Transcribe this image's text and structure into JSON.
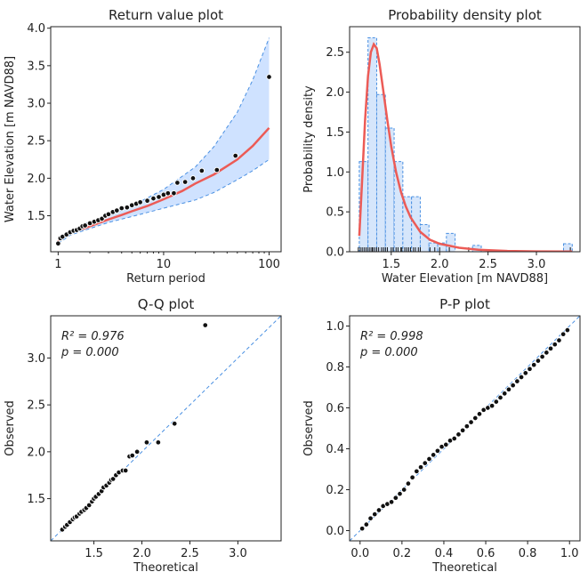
{
  "colors": {
    "fit_line": "#ec5b56",
    "ci_fill": "#cfe2ff",
    "ci_edge": "#4a90e2",
    "hist_fill": "#d6e6fb",
    "hist_edge": "#4a90e2",
    "points": "#111111",
    "identity": "#4a90e2"
  },
  "chart_data": [
    {
      "id": "return",
      "type": "line",
      "title": "Return value plot",
      "xlabel": "Return period",
      "ylabel": "Water Elevation [m NAVD88]",
      "x_scale": "log",
      "xlim": [
        0.85,
        130
      ],
      "ylim": [
        1.02,
        4.02
      ],
      "xticks": [
        1,
        10,
        100
      ],
      "xtick_labels": [
        "1",
        "10",
        "100"
      ],
      "yticks": [
        1.5,
        2.0,
        2.5,
        3.0,
        3.5,
        4.0
      ],
      "ytick_labels": [
        "1.5",
        "2.0",
        "2.5",
        "3.0",
        "3.5",
        "4.0"
      ],
      "fit": {
        "x": [
          1.0,
          1.1,
          1.3,
          1.6,
          2,
          3,
          4,
          5,
          7,
          10,
          15,
          20,
          30,
          50,
          70,
          100
        ],
        "y": [
          1.16,
          1.22,
          1.27,
          1.31,
          1.36,
          1.45,
          1.51,
          1.56,
          1.63,
          1.72,
          1.83,
          1.93,
          2.05,
          2.25,
          2.43,
          2.67
        ]
      },
      "ci_upper": {
        "x": [
          1.0,
          1.3,
          2,
          3,
          5,
          10,
          20,
          30,
          50,
          70,
          100
        ],
        "y": [
          1.19,
          1.3,
          1.42,
          1.5,
          1.63,
          1.85,
          2.15,
          2.42,
          2.88,
          3.31,
          3.87
        ]
      },
      "ci_lower": {
        "x": [
          1.0,
          1.3,
          2,
          3,
          5,
          10,
          20,
          30,
          50,
          70,
          100
        ],
        "y": [
          1.13,
          1.24,
          1.33,
          1.41,
          1.49,
          1.6,
          1.71,
          1.81,
          1.98,
          2.1,
          2.25
        ]
      },
      "points": {
        "x": [
          1.0,
          1.05,
          1.1,
          1.2,
          1.3,
          1.4,
          1.5,
          1.6,
          1.7,
          1.8,
          2.0,
          2.2,
          2.4,
          2.6,
          2.8,
          3.0,
          3.3,
          3.6,
          4.0,
          4.5,
          5.0,
          5.5,
          6.0,
          7.0,
          8.0,
          9.0,
          10.0,
          11.0,
          12.5,
          13.5,
          16,
          19,
          23,
          32,
          48,
          100
        ],
        "y": [
          1.13,
          1.2,
          1.22,
          1.25,
          1.28,
          1.3,
          1.31,
          1.33,
          1.36,
          1.37,
          1.4,
          1.42,
          1.44,
          1.46,
          1.5,
          1.52,
          1.55,
          1.57,
          1.6,
          1.61,
          1.64,
          1.66,
          1.68,
          1.7,
          1.73,
          1.75,
          1.78,
          1.8,
          1.8,
          1.94,
          1.95,
          2.0,
          2.1,
          2.11,
          2.3,
          3.35
        ]
      }
    },
    {
      "id": "pdf",
      "type": "bar",
      "title": "Probability density plot",
      "xlabel": "Water Elevation [m NAVD88]",
      "ylabel": "Probability density",
      "xlim": [
        1.07,
        3.45
      ],
      "ylim": [
        0,
        2.82
      ],
      "xticks": [
        1.5,
        2.0,
        2.5,
        3.0
      ],
      "xtick_labels": [
        "1.5",
        "2.0",
        "2.5",
        "3.0"
      ],
      "yticks": [
        0.0,
        0.5,
        1.0,
        1.5,
        2.0,
        2.5
      ],
      "ytick_labels": [
        "0.0",
        "0.5",
        "1.0",
        "1.5",
        "2.0",
        "2.5"
      ],
      "bins": [
        {
          "x0": 1.17,
          "x1": 1.26,
          "value": 1.13
        },
        {
          "x0": 1.26,
          "x1": 1.35,
          "value": 2.68
        },
        {
          "x0": 1.35,
          "x1": 1.44,
          "value": 1.97
        },
        {
          "x0": 1.44,
          "x1": 1.53,
          "value": 1.55
        },
        {
          "x0": 1.53,
          "x1": 1.62,
          "value": 1.13
        },
        {
          "x0": 1.62,
          "x1": 1.71,
          "value": 0.69
        },
        {
          "x0": 1.71,
          "x1": 1.8,
          "value": 0.69
        },
        {
          "x0": 1.8,
          "x1": 1.89,
          "value": 0.34
        },
        {
          "x0": 1.89,
          "x1": 1.98,
          "value": 0.11
        },
        {
          "x0": 1.98,
          "x1": 2.07,
          "value": 0.11
        },
        {
          "x0": 2.07,
          "x1": 2.16,
          "value": 0.23
        },
        {
          "x0": 2.16,
          "x1": 2.25,
          "value": 0.0
        },
        {
          "x0": 2.25,
          "x1": 2.34,
          "value": 0.0
        },
        {
          "x0": 2.34,
          "x1": 2.43,
          "value": 0.08
        },
        {
          "x0": 3.28,
          "x1": 3.37,
          "value": 0.1
        }
      ],
      "pdf": {
        "x": [
          1.17,
          1.2,
          1.23,
          1.26,
          1.29,
          1.32,
          1.35,
          1.38,
          1.42,
          1.46,
          1.5,
          1.55,
          1.6,
          1.65,
          1.7,
          1.8,
          1.9,
          2.0,
          2.2,
          2.4,
          2.7,
          3.0,
          3.37
        ],
        "y": [
          0.2,
          0.9,
          1.65,
          2.2,
          2.5,
          2.6,
          2.55,
          2.35,
          2.0,
          1.65,
          1.32,
          1.0,
          0.75,
          0.57,
          0.43,
          0.25,
          0.15,
          0.1,
          0.05,
          0.025,
          0.01,
          0.005,
          0.002
        ]
      },
      "rug": [
        1.16,
        1.18,
        1.2,
        1.22,
        1.24,
        1.26,
        1.28,
        1.3,
        1.31,
        1.33,
        1.35,
        1.37,
        1.4,
        1.42,
        1.44,
        1.46,
        1.5,
        1.52,
        1.55,
        1.57,
        1.6,
        1.61,
        1.64,
        1.66,
        1.68,
        1.7,
        1.73,
        1.75,
        1.78,
        1.8,
        1.9,
        1.95,
        2.0,
        2.1,
        2.3,
        3.35
      ]
    },
    {
      "id": "qq",
      "type": "scatter",
      "title": "Q-Q plot",
      "xlabel": "Theoretical",
      "ylabel": "Observed",
      "xlim": [
        1.05,
        3.45
      ],
      "ylim": [
        1.05,
        3.45
      ],
      "xticks": [
        1.5,
        2.0,
        2.5,
        3.0
      ],
      "xtick_labels": [
        "1.5",
        "2.0",
        "2.5",
        "3.0"
      ],
      "yticks": [
        1.5,
        2.0,
        2.5,
        3.0
      ],
      "ytick_labels": [
        "1.5",
        "2.0",
        "2.5",
        "3.0"
      ],
      "r2_text": "R² = 0.976",
      "p_text": "p = 0.000",
      "points": {
        "x": [
          1.17,
          1.2,
          1.22,
          1.25,
          1.28,
          1.3,
          1.32,
          1.35,
          1.37,
          1.4,
          1.42,
          1.45,
          1.48,
          1.5,
          1.52,
          1.55,
          1.58,
          1.6,
          1.63,
          1.66,
          1.68,
          1.7,
          1.73,
          1.76,
          1.8,
          1.83,
          1.87,
          1.9,
          1.95,
          2.05,
          2.17,
          2.34,
          2.66
        ],
        "y": [
          1.17,
          1.2,
          1.22,
          1.25,
          1.28,
          1.3,
          1.31,
          1.34,
          1.36,
          1.38,
          1.4,
          1.43,
          1.47,
          1.5,
          1.52,
          1.55,
          1.58,
          1.62,
          1.64,
          1.67,
          1.7,
          1.71,
          1.75,
          1.78,
          1.8,
          1.8,
          1.95,
          1.96,
          2.0,
          2.1,
          2.1,
          2.3,
          3.35
        ]
      }
    },
    {
      "id": "pp",
      "type": "scatter",
      "title": "P-P plot",
      "xlabel": "Theoretical",
      "ylabel": "Observed",
      "xlim": [
        -0.05,
        1.05
      ],
      "ylim": [
        -0.05,
        1.05
      ],
      "xticks": [
        0.0,
        0.2,
        0.4,
        0.6,
        0.8,
        1.0
      ],
      "xtick_labels": [
        "0.0",
        "0.2",
        "0.4",
        "0.6",
        "0.8",
        "1.0"
      ],
      "yticks": [
        0.0,
        0.2,
        0.4,
        0.6,
        0.8,
        1.0
      ],
      "ytick_labels": [
        "0.0",
        "0.2",
        "0.4",
        "0.6",
        "0.8",
        "1.0"
      ],
      "r2_text": "R² = 0.998",
      "p_text": "p = 0.000",
      "points": {
        "x": [
          0.01,
          0.03,
          0.05,
          0.07,
          0.09,
          0.11,
          0.13,
          0.15,
          0.17,
          0.19,
          0.21,
          0.23,
          0.25,
          0.27,
          0.29,
          0.31,
          0.33,
          0.35,
          0.37,
          0.39,
          0.41,
          0.43,
          0.45,
          0.47,
          0.49,
          0.51,
          0.53,
          0.55,
          0.57,
          0.59,
          0.61,
          0.63,
          0.65,
          0.67,
          0.69,
          0.71,
          0.73,
          0.75,
          0.77,
          0.79,
          0.81,
          0.83,
          0.85,
          0.87,
          0.89,
          0.91,
          0.93,
          0.95,
          0.97,
          0.99
        ],
        "y": [
          0.01,
          0.03,
          0.06,
          0.08,
          0.1,
          0.12,
          0.13,
          0.14,
          0.16,
          0.18,
          0.2,
          0.23,
          0.26,
          0.29,
          0.31,
          0.33,
          0.35,
          0.37,
          0.39,
          0.41,
          0.42,
          0.44,
          0.45,
          0.47,
          0.49,
          0.51,
          0.53,
          0.55,
          0.57,
          0.59,
          0.6,
          0.61,
          0.63,
          0.65,
          0.67,
          0.69,
          0.71,
          0.73,
          0.75,
          0.77,
          0.79,
          0.81,
          0.83,
          0.85,
          0.87,
          0.89,
          0.91,
          0.93,
          0.96,
          0.98
        ]
      }
    }
  ]
}
